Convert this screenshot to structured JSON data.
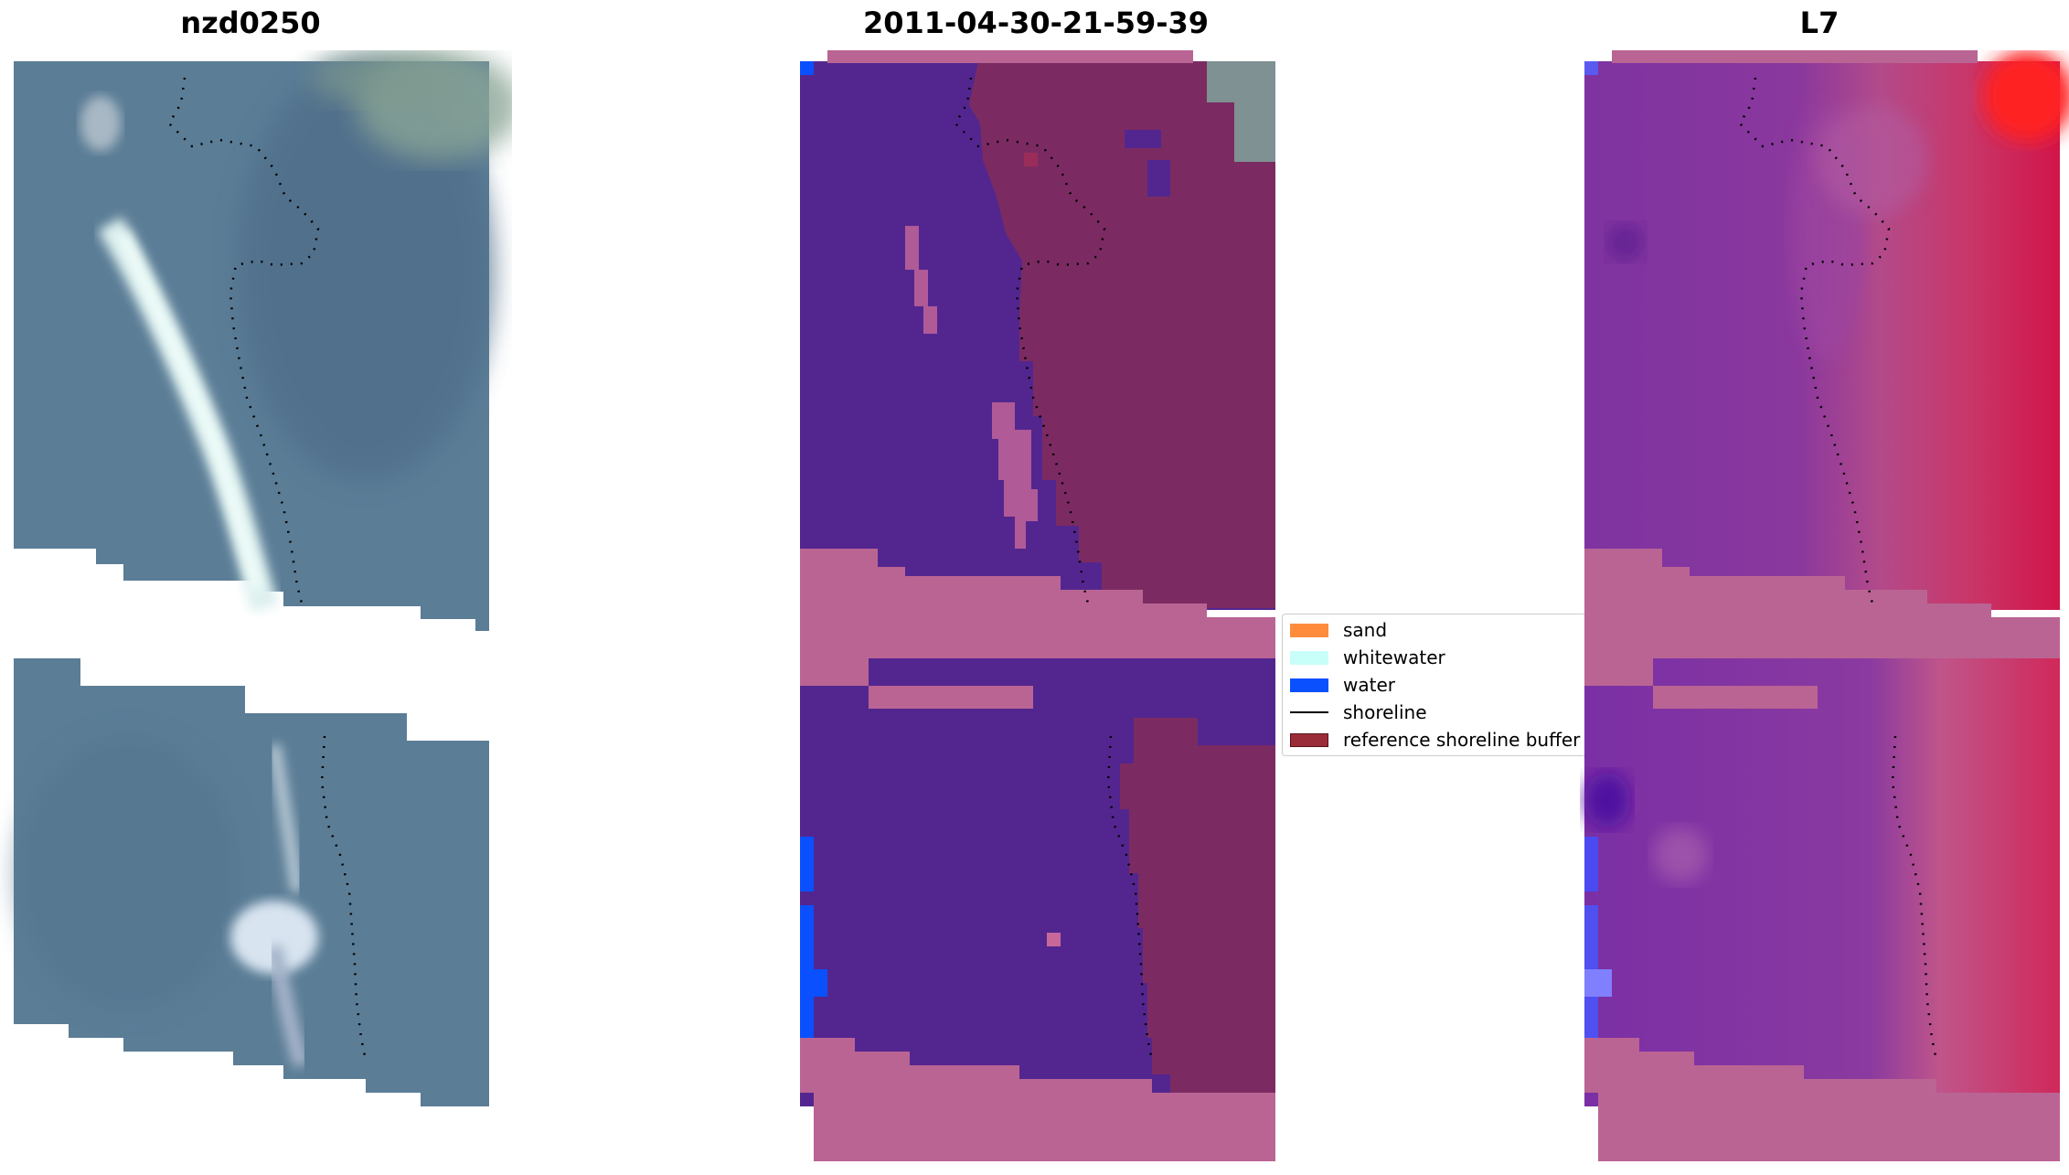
{
  "panels": [
    {
      "title": "nzd0250"
    },
    {
      "title": "2011-04-30-21-59-39"
    },
    {
      "title": "L7"
    }
  ],
  "legend": {
    "items": [
      {
        "label": "sand",
        "kind": "patch",
        "color": "#ff8c3c"
      },
      {
        "label": "whitewater",
        "kind": "patch",
        "color": "#c8fff8"
      },
      {
        "label": "water",
        "kind": "patch",
        "color": "#0a50ff"
      },
      {
        "label": "shoreline",
        "kind": "line",
        "color": "#000000"
      },
      {
        "label": "reference shoreline buffer",
        "kind": "patch",
        "color": "#9a2c3a"
      }
    ]
  },
  "colors": {
    "rgb_water": "#5b7d96",
    "rgb_sand_highlight": "#e6f5f0",
    "class_water": "#53268f",
    "class_land": "#7b2b62",
    "buffer_pink": "#ba6494",
    "index_purple": "#7e33a0",
    "index_red": "#d1154a",
    "index_bright_red": "#ff2020"
  }
}
